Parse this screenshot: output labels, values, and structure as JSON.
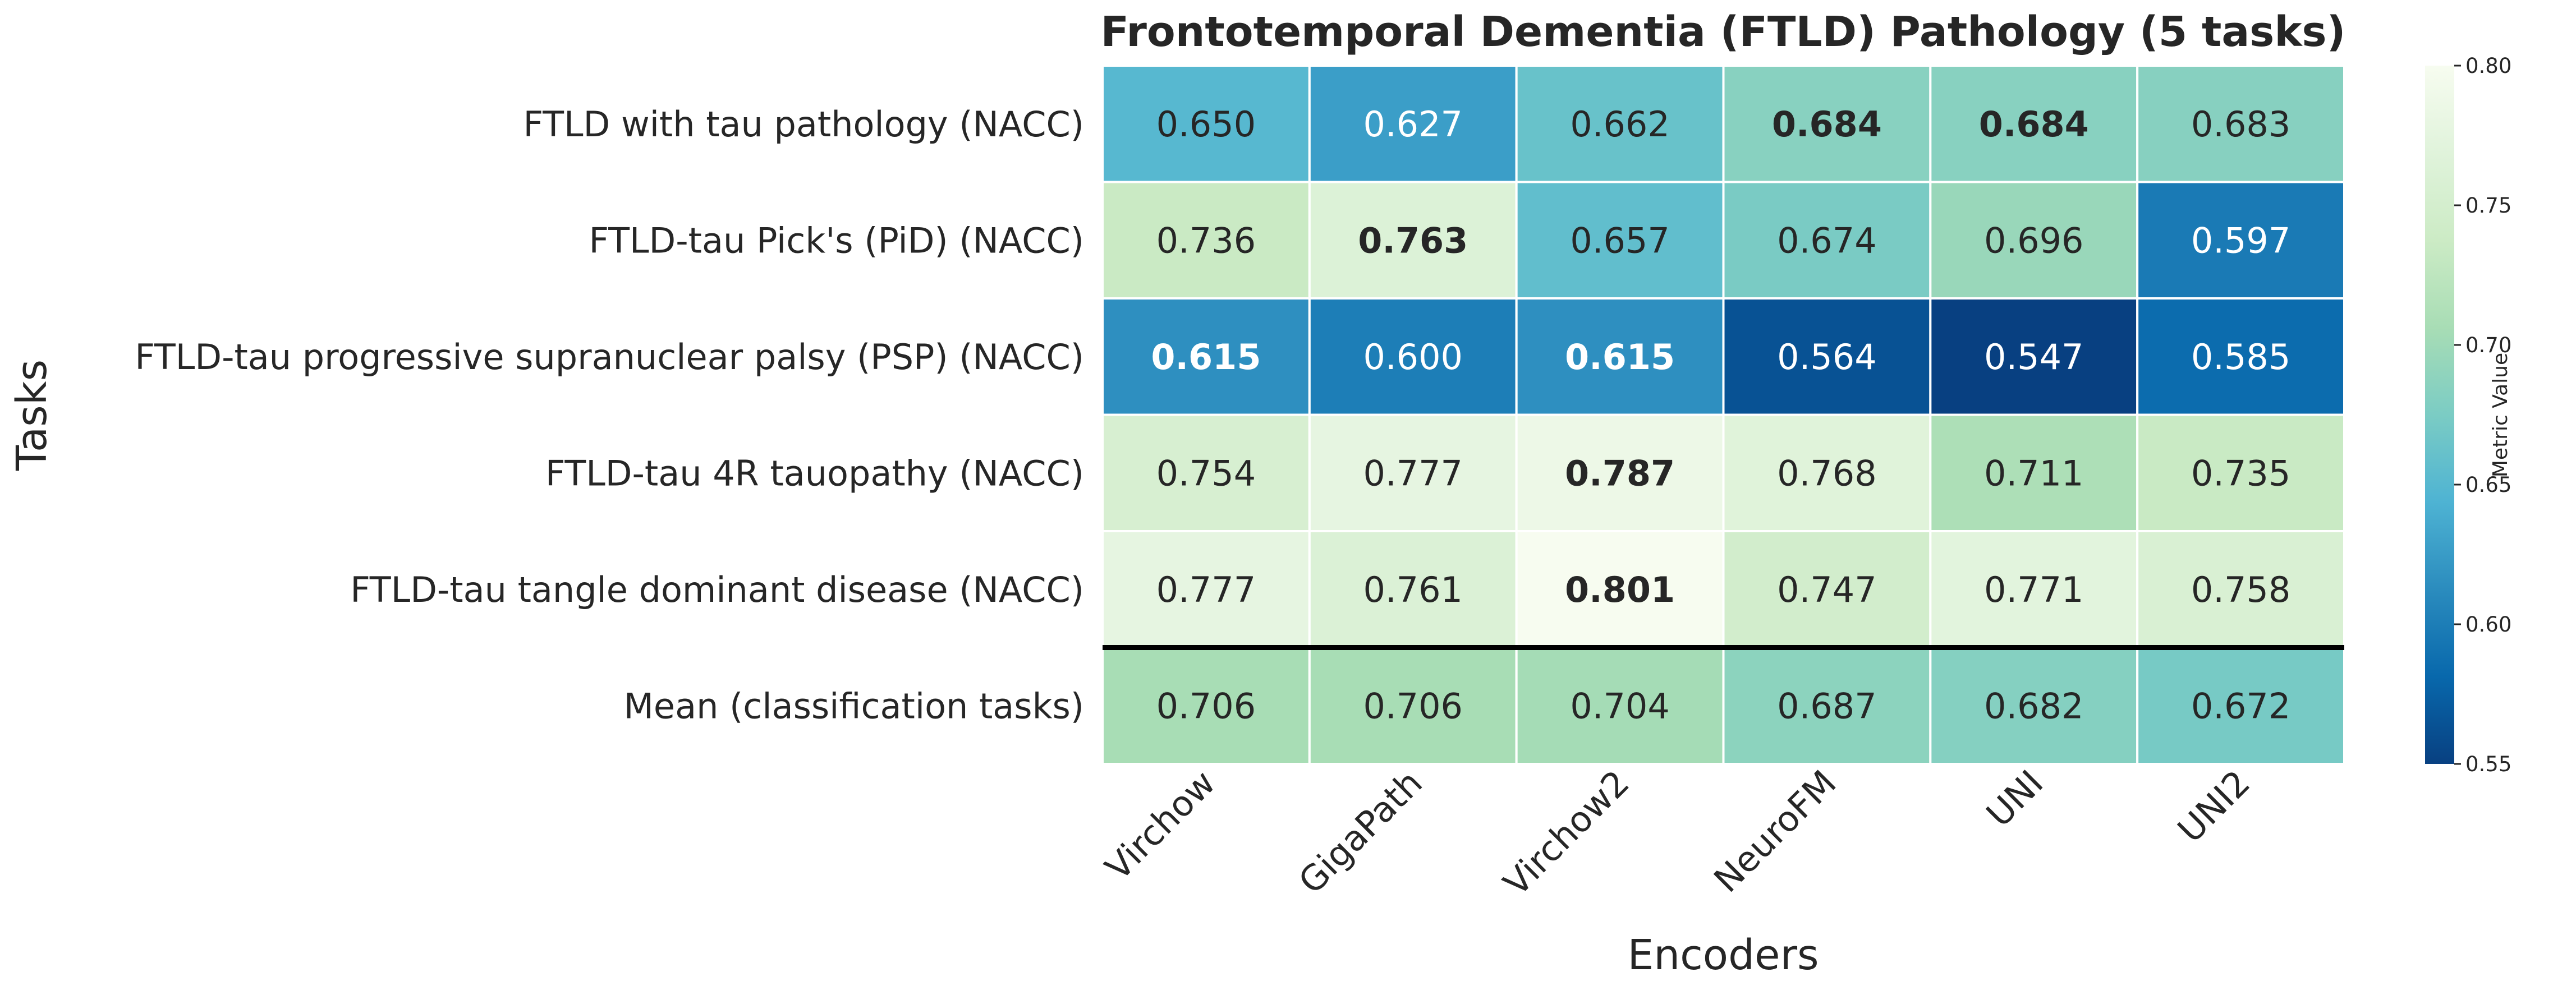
{
  "chart_data": {
    "type": "heatmap",
    "title": "Frontotemporal Dementia (FTLD) Pathology (5 tasks)",
    "xlabel": "Encoders",
    "ylabel": "Tasks",
    "x_categories": [
      "Virchow",
      "GigaPath",
      "Virchow2",
      "NeuroFM",
      "UNI",
      "UNI2"
    ],
    "y_categories": [
      "FTLD with tau pathology (NACC)",
      "FTLD-tau Pick's (PiD) (NACC)",
      "FTLD-tau progressive supranuclear palsy (PSP) (NACC)",
      "FTLD-tau 4R tauopathy (NACC)",
      "FTLD-tau tangle dominant disease (NACC)",
      "Mean (classification tasks)"
    ],
    "values": [
      [
        0.65,
        0.627,
        0.662,
        0.684,
        0.684,
        0.683
      ],
      [
        0.736,
        0.763,
        0.657,
        0.674,
        0.696,
        0.597
      ],
      [
        0.615,
        0.6,
        0.615,
        0.564,
        0.547,
        0.585
      ],
      [
        0.754,
        0.777,
        0.787,
        0.768,
        0.711,
        0.735
      ],
      [
        0.777,
        0.761,
        0.801,
        0.747,
        0.771,
        0.758
      ],
      [
        0.706,
        0.706,
        0.704,
        0.687,
        0.682,
        0.672
      ]
    ],
    "bold": [
      [
        false,
        false,
        false,
        true,
        true,
        false
      ],
      [
        false,
        true,
        false,
        false,
        false,
        false
      ],
      [
        true,
        false,
        true,
        false,
        false,
        false
      ],
      [
        false,
        false,
        true,
        false,
        false,
        false
      ],
      [
        false,
        false,
        true,
        false,
        false,
        false
      ],
      [
        false,
        false,
        false,
        false,
        false,
        false
      ]
    ],
    "colormap": "GnBu_r",
    "colormap_stops": [
      "#084081",
      "#0868ac",
      "#2b8cbe",
      "#4eb3d3",
      "#7bccc4",
      "#a8ddb5",
      "#ccebc5",
      "#e0f3db",
      "#f7fcf0"
    ],
    "color_range": [
      0.55,
      0.8
    ],
    "colorbar": {
      "label": "Metric Value",
      "ticks": [
        "0.55",
        "0.60",
        "0.65",
        "0.70",
        "0.75",
        "0.80"
      ]
    },
    "separator_after_row": 5,
    "number_format": "3 decimals"
  }
}
